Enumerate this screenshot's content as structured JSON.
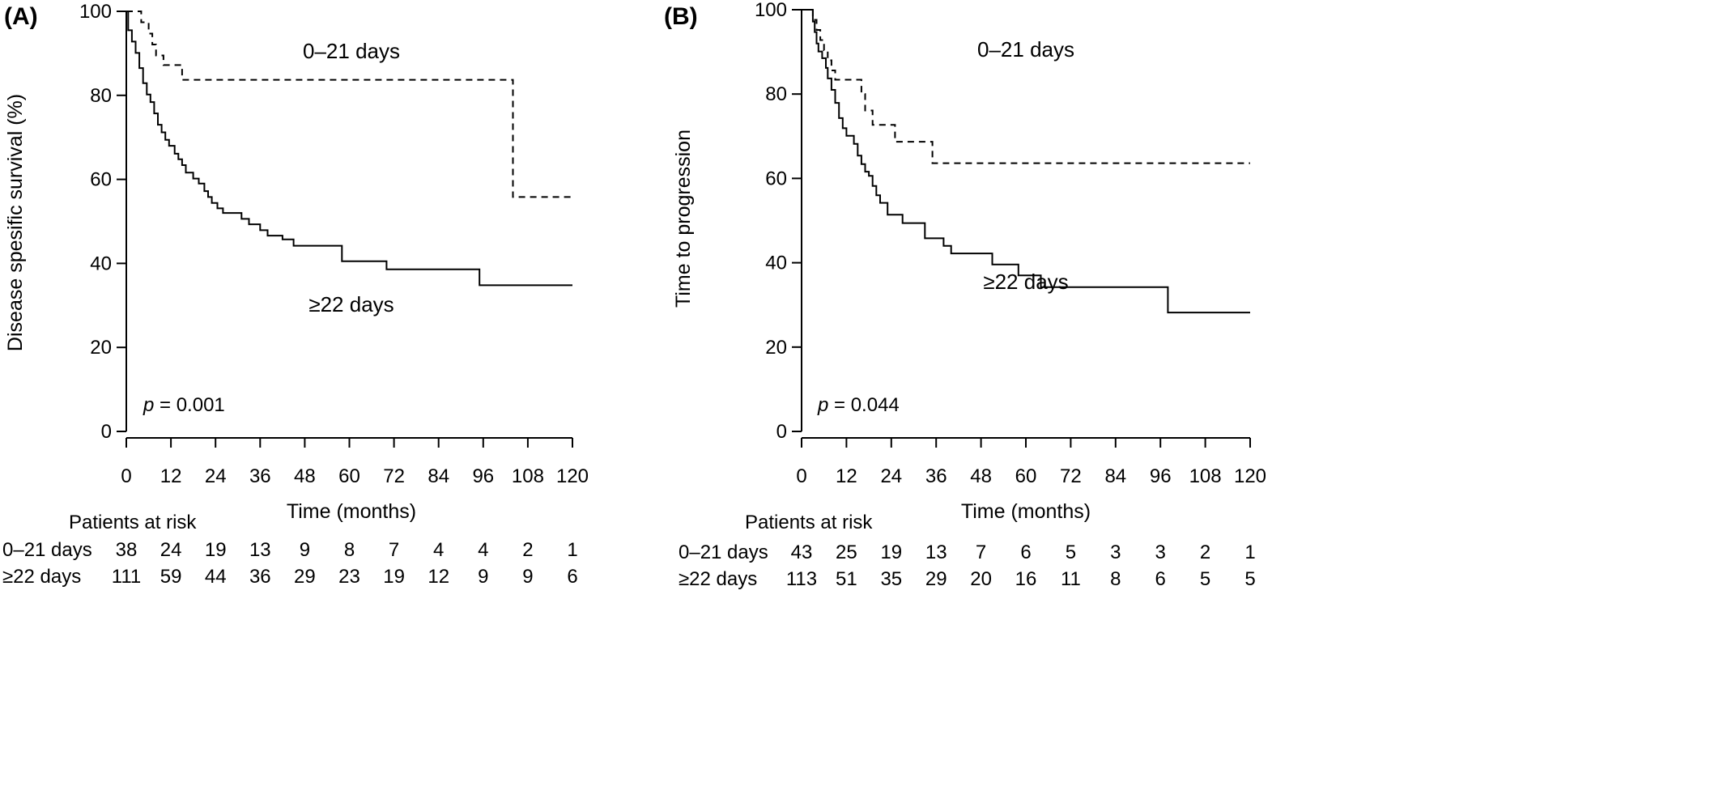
{
  "chart_data": [
    {
      "type": "line",
      "panel_label": "(A)",
      "xlabel": "Time (months)",
      "ylabel": "Disease spesific survival (%)",
      "x_ticks": [
        "0",
        "12",
        "24",
        "36",
        "48",
        "60",
        "72",
        "84",
        "96",
        "108",
        "120"
      ],
      "y_ticks": [
        "0",
        "20",
        "40",
        "60",
        "80",
        "100"
      ],
      "xlim": [
        0,
        120
      ],
      "ylim": [
        0,
        100
      ],
      "grid": false,
      "p_value_label": "p",
      "p_value_text": " = 0.001",
      "series": [
        {
          "name": "0–21 days",
          "style": "dashed",
          "steps": [
            [
              0,
              100
            ],
            [
              4,
              97.4
            ],
            [
              6,
              94.7
            ],
            [
              7,
              92.1
            ],
            [
              8,
              89.5
            ],
            [
              10,
              87.2
            ],
            [
              15,
              83.7
            ],
            [
              104,
              55.8
            ],
            [
              120,
              55.8
            ]
          ]
        },
        {
          "name": "≥22 days",
          "style": "solid",
          "steps": [
            [
              0,
              100
            ],
            [
              0.5,
              95.5
            ],
            [
              1.5,
              92.8
            ],
            [
              2.5,
              90.1
            ],
            [
              3.5,
              86.5
            ],
            [
              4.5,
              82.9
            ],
            [
              5.5,
              80.2
            ],
            [
              6.5,
              78.4
            ],
            [
              7.5,
              75.7
            ],
            [
              8.5,
              73.0
            ],
            [
              9.5,
              71.2
            ],
            [
              10.5,
              69.4
            ],
            [
              11.5,
              68.0
            ],
            [
              13,
              66.1
            ],
            [
              14,
              64.8
            ],
            [
              15,
              63.4
            ],
            [
              16,
              61.6
            ],
            [
              18,
              60.2
            ],
            [
              19.5,
              59.0
            ],
            [
              21,
              57.2
            ],
            [
              22,
              55.8
            ],
            [
              23,
              54.4
            ],
            [
              24.5,
              53.1
            ],
            [
              26,
              52.0
            ],
            [
              31,
              50.6
            ],
            [
              33,
              49.3
            ],
            [
              36,
              47.9
            ],
            [
              38,
              46.6
            ],
            [
              42,
              45.7
            ],
            [
              45,
              44.2
            ],
            [
              58,
              40.5
            ],
            [
              70,
              38.6
            ],
            [
              95,
              34.8
            ],
            [
              120,
              34.8
            ]
          ]
        }
      ],
      "risk_table": {
        "title": "Patients at risk",
        "rows": [
          {
            "label": "0–21 days",
            "values": [
              "38",
              "24",
              "19",
              "13",
              "9",
              "8",
              "7",
              "4",
              "4",
              "2",
              "1"
            ]
          },
          {
            "label": "≥22 days",
            "values": [
              "111",
              "59",
              "44",
              "36",
              "29",
              "23",
              "19",
              "12",
              "9",
              "9",
              "6"
            ]
          }
        ]
      }
    },
    {
      "type": "line",
      "panel_label": "(B)",
      "xlabel": "Time (months)",
      "ylabel": "Time to progression",
      "x_ticks": [
        "0",
        "12",
        "24",
        "36",
        "48",
        "60",
        "72",
        "84",
        "96",
        "108",
        "120"
      ],
      "y_ticks": [
        "0",
        "20",
        "40",
        "60",
        "80",
        "100"
      ],
      "xlim": [
        0,
        120
      ],
      "ylim": [
        0,
        100
      ],
      "grid": false,
      "p_value_label": "p",
      "p_value_text": " = 0.044",
      "series": [
        {
          "name": "0–21 days",
          "style": "dashed",
          "steps": [
            [
              0,
              100
            ],
            [
              3,
              97.6
            ],
            [
              4,
              95.2
            ],
            [
              5,
              92.8
            ],
            [
              6,
              90.4
            ],
            [
              7,
              88.0
            ],
            [
              8,
              85.6
            ],
            [
              9,
              83.4
            ],
            [
              16,
              80.0
            ],
            [
              17,
              76.1
            ],
            [
              19,
              72.7
            ],
            [
              25,
              68.7
            ],
            [
              35,
              63.6
            ],
            [
              120,
              63.6
            ]
          ]
        },
        {
          "name": "≥22 days",
          "style": "solid",
          "steps": [
            [
              0,
              100
            ],
            [
              3,
              97.2
            ],
            [
              3.5,
              94.7
            ],
            [
              4,
              92.0
            ],
            [
              4.5,
              90.1
            ],
            [
              5.5,
              88.5
            ],
            [
              6.5,
              86.2
            ],
            [
              7,
              83.7
            ],
            [
              8,
              81.0
            ],
            [
              9,
              77.9
            ],
            [
              10,
              74.3
            ],
            [
              11,
              71.9
            ],
            [
              12,
              70.1
            ],
            [
              14,
              68.2
            ],
            [
              15,
              65.4
            ],
            [
              16,
              63.4
            ],
            [
              17,
              61.6
            ],
            [
              18,
              60.6
            ],
            [
              19,
              58.2
            ],
            [
              20,
              56.0
            ],
            [
              21,
              54.2
            ],
            [
              23,
              51.4
            ],
            [
              27,
              49.4
            ],
            [
              33,
              45.8
            ],
            [
              38,
              44.0
            ],
            [
              40,
              42.2
            ],
            [
              51,
              39.6
            ],
            [
              58,
              37.0
            ],
            [
              64,
              34.2
            ],
            [
              98,
              28.2
            ],
            [
              120,
              28.2
            ]
          ]
        }
      ],
      "risk_table": {
        "title": "Patients at risk",
        "rows": [
          {
            "label": "0–21 days",
            "values": [
              "43",
              "25",
              "19",
              "13",
              "7",
              "6",
              "5",
              "3",
              "3",
              "2",
              "1"
            ]
          },
          {
            "label": "≥22 days",
            "values": [
              "113",
              "51",
              "35",
              "29",
              "20",
              "16",
              "11",
              "8",
              "6",
              "5",
              "5"
            ]
          }
        ]
      }
    }
  ]
}
